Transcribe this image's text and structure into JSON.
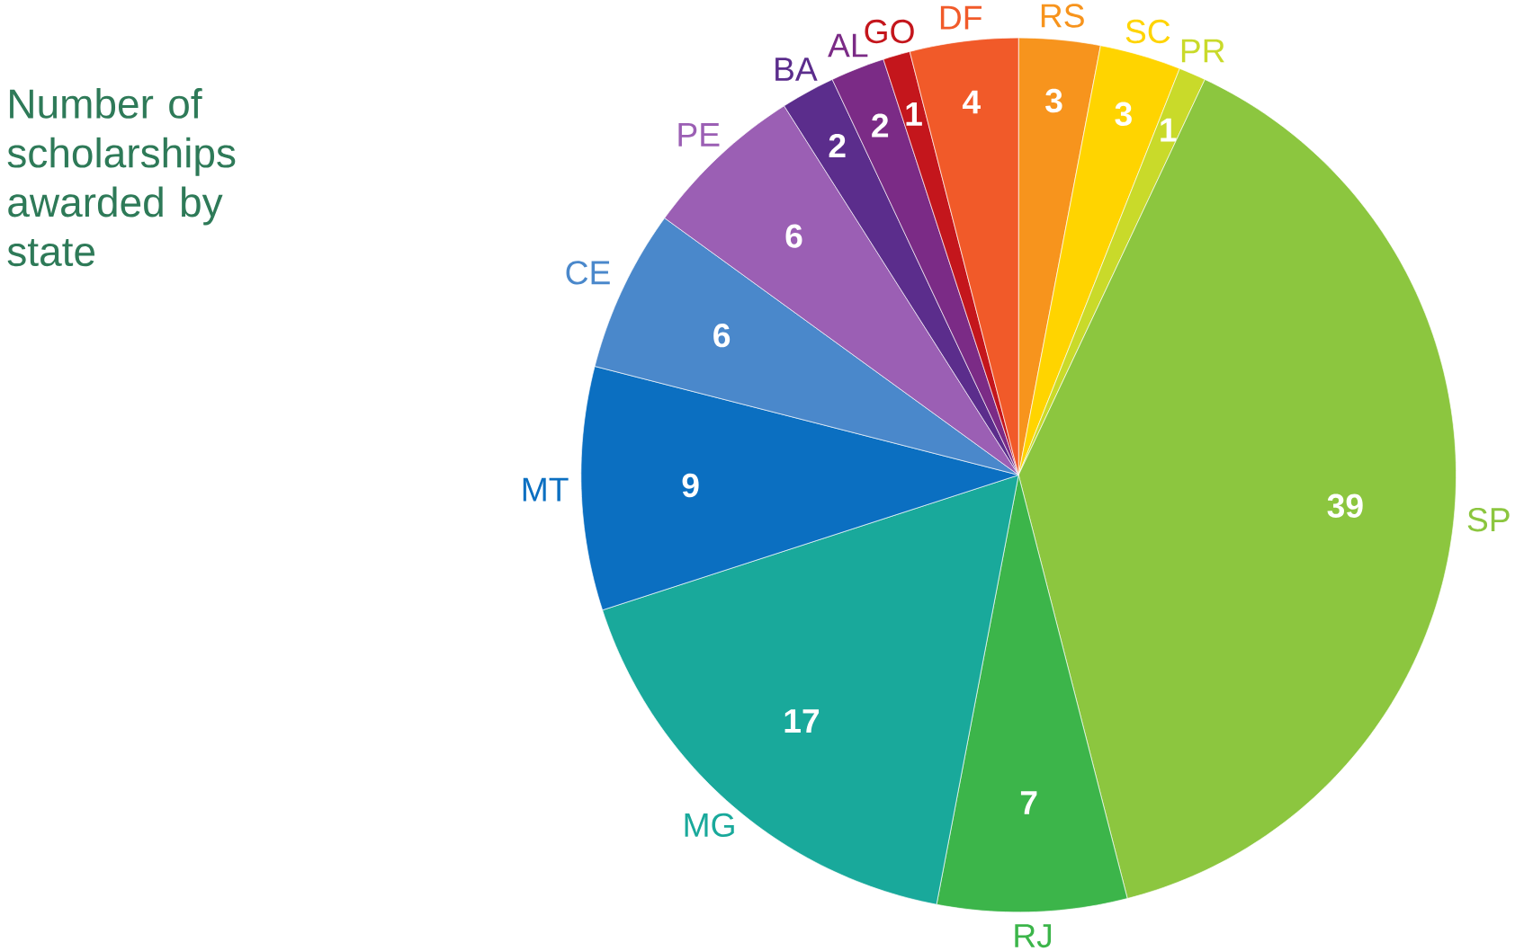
{
  "chart_data": {
    "type": "pie",
    "title": "Number of scholarships awarded by state",
    "categories": [
      "RS",
      "SC",
      "PR",
      "SP",
      "RJ",
      "MG",
      "MT",
      "CE",
      "PE",
      "BA",
      "AL",
      "GO",
      "DF"
    ],
    "values": [
      3,
      3,
      1,
      39,
      7,
      17,
      9,
      6,
      6,
      2,
      2,
      1,
      4
    ],
    "colors": [
      "#f7941d",
      "#ffd400",
      "#c9da2a",
      "#8cc63f",
      "#3cb54a",
      "#19a99b",
      "#0b6fc1",
      "#4a88cb",
      "#9b5fb4",
      "#5b2d8c",
      "#7b2b86",
      "#c4161c",
      "#f15a29"
    ],
    "data_labels": true
  }
}
